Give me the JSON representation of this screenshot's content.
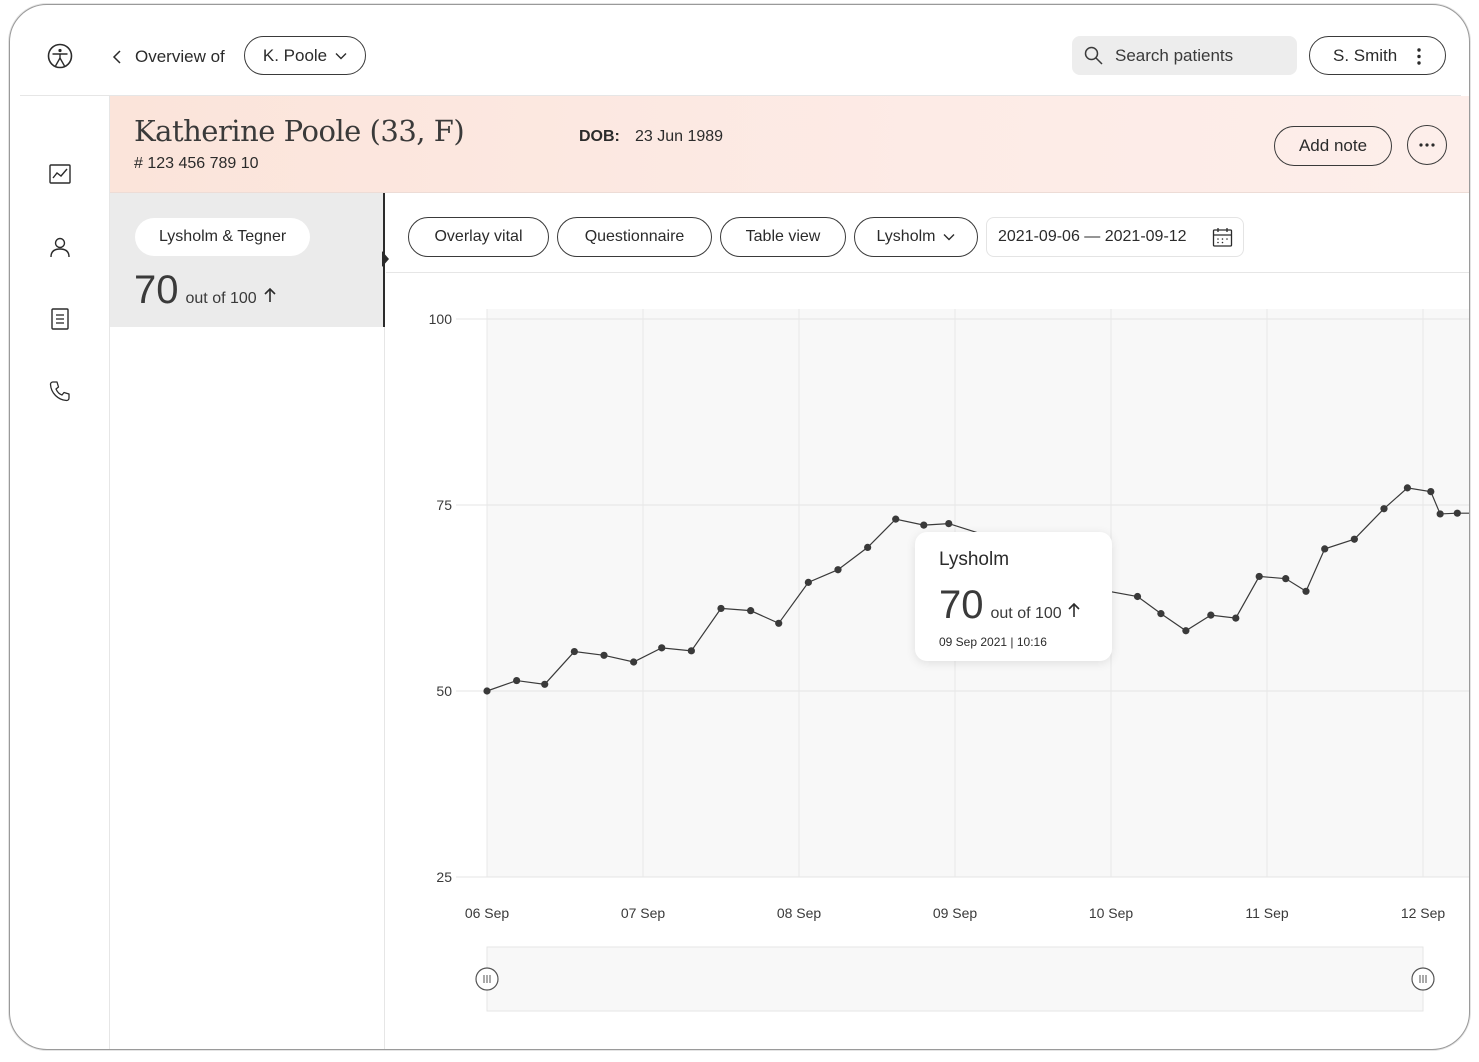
{
  "topbar": {
    "back_label": "Overview of",
    "patient_selector": "K. Poole",
    "search_placeholder": "Search patients",
    "user_name": "S. Smith"
  },
  "patient": {
    "name": "Katherine Poole (33,  F)",
    "id": "# 123 456 789 10",
    "dob_label": "DOB:",
    "dob_value": "23 Jun 1989",
    "add_note_label": "Add note"
  },
  "metric": {
    "label": "Lysholm & Tegner",
    "value": "70",
    "unit": "out of 100",
    "trend": "up"
  },
  "toolbar": {
    "overlay_label": "Overlay vital",
    "questionnaire_label": "Questionnaire",
    "table_label": "Table view",
    "score_select": "Lysholm",
    "date_range": "2021-09-06 — 2021-09-12"
  },
  "tooltip": {
    "title": "Lysholm",
    "value": "70",
    "unit": "out of 100",
    "date": "09 Sep 2021  |  10:16"
  },
  "rail_icons": [
    "chart-icon",
    "person-icon",
    "document-icon",
    "phone-icon"
  ],
  "colors": {
    "header_bg": "#fbe4da",
    "line": "#3a3a3a",
    "panel_bg": "#ebebeb"
  },
  "chart_data": {
    "type": "line",
    "x_ticks": [
      "06 Sep",
      "07 Sep",
      "08 Sep",
      "09 Sep",
      "10 Sep",
      "11 Sep",
      "12 Sep"
    ],
    "y_ticks": [
      "100",
      "75",
      "50",
      "25"
    ],
    "ylim": [
      25,
      100
    ],
    "grid": true,
    "series": [
      {
        "x_days": [
          0,
          0.19,
          0.37,
          0.56,
          0.75,
          0.94,
          1.12,
          1.31,
          1.5,
          1.69,
          1.87,
          2.06,
          2.25,
          2.44,
          2.62,
          2.8,
          2.96,
          3.41,
          3.65,
          3.81,
          3.96,
          4.17,
          4.32,
          4.48,
          4.64,
          4.8,
          4.95,
          5.12,
          5.25,
          5.37,
          5.56,
          5.75,
          5.9,
          6.05,
          6.11,
          6.22,
          6.34
        ],
        "y": [
          50,
          51.4,
          50.9,
          55.3,
          54.8,
          53.9,
          55.8,
          55.4,
          61.1,
          60.8,
          59.1,
          64.6,
          66.3,
          69.3,
          73.1,
          72.3,
          72.5,
          69.5,
          66.5,
          67.2,
          63.5,
          62.7,
          60.4,
          58.1,
          60.2,
          59.8,
          65.4,
          65.1,
          63.4,
          69.1,
          70.4,
          74.5,
          77.3,
          76.8,
          73.8,
          73.9,
          73.9
        ]
      }
    ]
  }
}
